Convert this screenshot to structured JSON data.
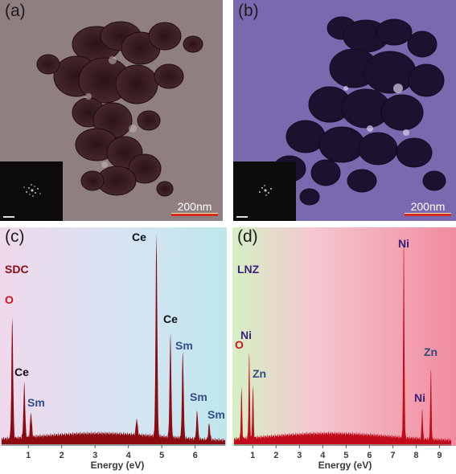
{
  "panels": {
    "a": {
      "label": "(a)",
      "scale_bar": "200nm"
    },
    "b": {
      "label": "(b)",
      "scale_bar": "200nm"
    },
    "c": {
      "label": "(c)",
      "sample": "SDC"
    },
    "d": {
      "label": "(d)",
      "sample": "LNZ"
    }
  },
  "colors": {
    "tem_a": "#8f7f80",
    "tem_b": "#7b69b0",
    "spectrum_c": "#8b0b10",
    "spectrum_d": "#c10a1a",
    "label_O": "#d0101a",
    "label_Ce": "#111111",
    "label_Sm": "#2f4f8a",
    "label_Ni": "#3a1f7a",
    "label_Zn": "#2e4f7a"
  },
  "chart_data": [
    {
      "type": "line",
      "panel": "c",
      "xlabel": "Energy (eV)",
      "xlim": [
        0.2,
        6.9
      ],
      "ylim": [
        0,
        100
      ],
      "x_ticks": [
        1,
        2,
        3,
        4,
        5,
        6
      ],
      "peaks": [
        {
          "x": 0.52,
          "y": 60,
          "label": "O"
        },
        {
          "x": 0.88,
          "y": 27,
          "label": "Ce"
        },
        {
          "x": 1.08,
          "y": 12,
          "label": "Sm"
        },
        {
          "x": 4.25,
          "y": 8
        },
        {
          "x": 4.84,
          "y": 100,
          "label": "Ce"
        },
        {
          "x": 5.26,
          "y": 51,
          "label": "Ce"
        },
        {
          "x": 5.63,
          "y": 43,
          "label": "Sm"
        },
        {
          "x": 6.06,
          "y": 14,
          "label": "Sm"
        },
        {
          "x": 6.42,
          "y": 8,
          "label": "Sm"
        }
      ]
    },
    {
      "type": "line",
      "panel": "d",
      "xlabel": "Energy (eV)",
      "xlim": [
        0.2,
        9.5
      ],
      "ylim": [
        0,
        100
      ],
      "x_ticks": [
        1,
        2,
        3,
        4,
        5,
        6,
        7,
        8,
        9
      ],
      "peaks": [
        {
          "x": 0.52,
          "y": 26,
          "label": "O"
        },
        {
          "x": 0.85,
          "y": 44,
          "label": "Ni"
        },
        {
          "x": 1.01,
          "y": 27,
          "label": "Zn"
        },
        {
          "x": 7.47,
          "y": 100,
          "label": "Ni"
        },
        {
          "x": 8.26,
          "y": 15,
          "label": "Ni"
        },
        {
          "x": 8.63,
          "y": 36,
          "label": "Zn"
        }
      ]
    }
  ]
}
